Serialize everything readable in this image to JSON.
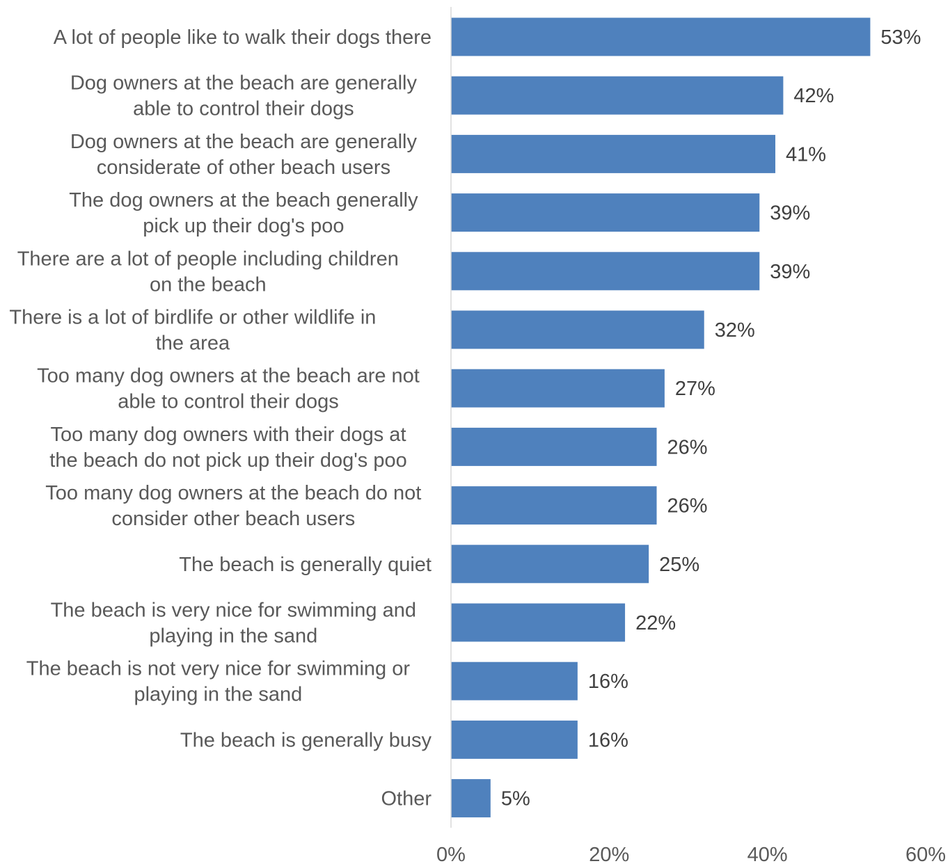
{
  "chart_data": {
    "type": "bar",
    "orientation": "horizontal",
    "categories": [
      [
        "A lot of people like to walk their dogs there"
      ],
      [
        "Dog owners at the beach are generally",
        "able to control their dogs"
      ],
      [
        "Dog owners at the beach are generally",
        "considerate of other beach users"
      ],
      [
        "The dog owners at the beach generally",
        "pick up their dog's poo"
      ],
      [
        "There are a lot of people including children",
        "on the beach"
      ],
      [
        "There is a lot of birdlife or other wildlife in",
        "the area"
      ],
      [
        "Too many dog owners at the beach are not",
        "able to control their dogs"
      ],
      [
        "Too many dog owners with their dogs at",
        "the beach do not pick up their dog's poo"
      ],
      [
        "Too many dog owners at the beach do not",
        "consider other beach users"
      ],
      [
        "The beach is generally quiet"
      ],
      [
        "The beach is very nice for swimming and",
        "playing in the sand"
      ],
      [
        "The beach is not very nice for swimming or",
        "playing in the sand"
      ],
      [
        "The beach is generally busy"
      ],
      [
        "Other"
      ]
    ],
    "values": [
      53,
      42,
      41,
      39,
      39,
      32,
      27,
      26,
      26,
      25,
      22,
      16,
      16,
      5
    ],
    "data_labels": [
      "53%",
      "42%",
      "41%",
      "39%",
      "39%",
      "32%",
      "27%",
      "26%",
      "26%",
      "25%",
      "22%",
      "16%",
      "16%",
      "5%"
    ],
    "x_ticks": [
      0,
      20,
      40,
      60
    ],
    "x_tick_labels": [
      "0%",
      "20%",
      "40%",
      "60%"
    ],
    "xlim": [
      0,
      60
    ],
    "bar_color": "#4F81BD",
    "axis_color": "#D9D9D9",
    "grid": false,
    "legend": "none"
  }
}
